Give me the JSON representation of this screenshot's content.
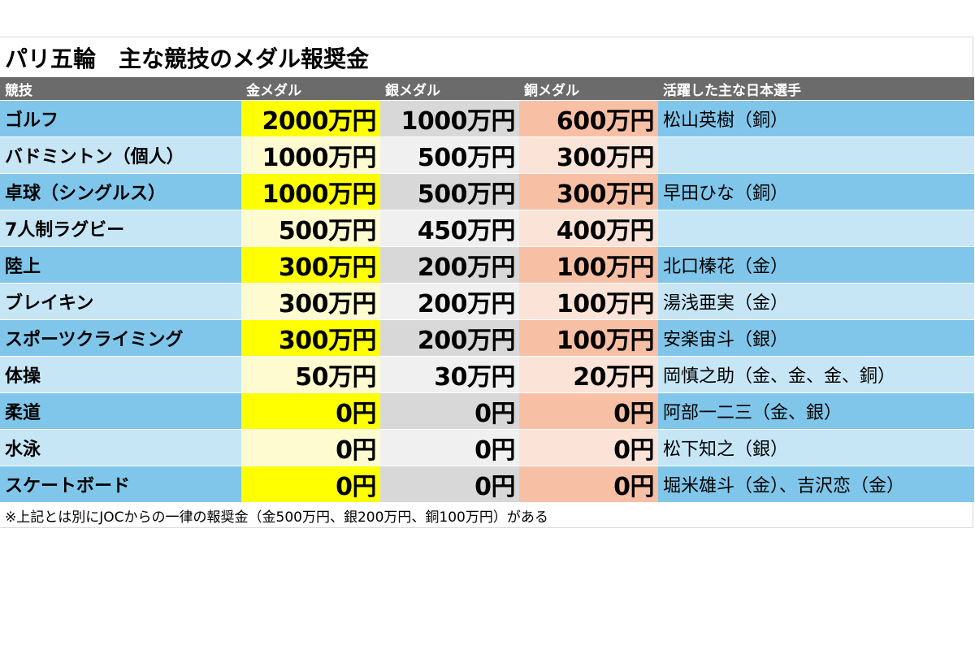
{
  "title": "パリ五輪　主な競技のメダル報奨金",
  "headers": {
    "event": "競技",
    "gold": "金メダル",
    "silver": "銀メダル",
    "bronze": "銅メダル",
    "athletes": "活躍した主な日本選手"
  },
  "rows": [
    {
      "event": "ゴルフ",
      "gold": "2000万円",
      "silver": "1000万円",
      "bronze": "600万円",
      "athletes": "松山英樹（銅）"
    },
    {
      "event": "バドミントン（個人）",
      "gold": "1000万円",
      "silver": "500万円",
      "bronze": "300万円",
      "athletes": ""
    },
    {
      "event": "卓球（シングルス）",
      "gold": "1000万円",
      "silver": "500万円",
      "bronze": "300万円",
      "athletes": "早田ひな（銅）"
    },
    {
      "event": "7人制ラグビー",
      "gold": "500万円",
      "silver": "450万円",
      "bronze": "400万円",
      "athletes": ""
    },
    {
      "event": "陸上",
      "gold": "300万円",
      "silver": "200万円",
      "bronze": "100万円",
      "athletes": "北口榛花（金）"
    },
    {
      "event": "ブレイキン",
      "gold": "300万円",
      "silver": "200万円",
      "bronze": "100万円",
      "athletes": "湯浅亜実（金）"
    },
    {
      "event": "スポーツクライミング",
      "gold": "300万円",
      "silver": "200万円",
      "bronze": "100万円",
      "athletes": "安楽宙斗（銀）"
    },
    {
      "event": "体操",
      "gold": "50万円",
      "silver": "30万円",
      "bronze": "20万円",
      "athletes": "岡慎之助（金、金、金、銅）"
    },
    {
      "event": "柔道",
      "gold": "0円",
      "silver": "0円",
      "bronze": "0円",
      "athletes": "阿部一二三（金、銀）"
    },
    {
      "event": "水泳",
      "gold": "0円",
      "silver": "0円",
      "bronze": "0円",
      "athletes": "松下知之（銀）"
    },
    {
      "event": "スケートボード",
      "gold": "0円",
      "silver": "0円",
      "bronze": "0円",
      "athletes": "堀米雄斗（金）、吉沢恋（金）"
    }
  ],
  "footnote": "※上記とは別にJOCからの一律の報奨金（金500万円、銀200万円、銅100万円）がある",
  "colors": {
    "header_bg": "#6b6b6b",
    "row_blue_dark": "#7fc6ea",
    "row_blue_light": "#c6e6f6",
    "gold_dark": "#ffff00",
    "gold_light": "#fffbd0",
    "silver_dark": "#d8d8d8",
    "silver_light": "#f0f0f0",
    "bronze_dark": "#f7c0a5",
    "bronze_light": "#fbe3d8"
  }
}
